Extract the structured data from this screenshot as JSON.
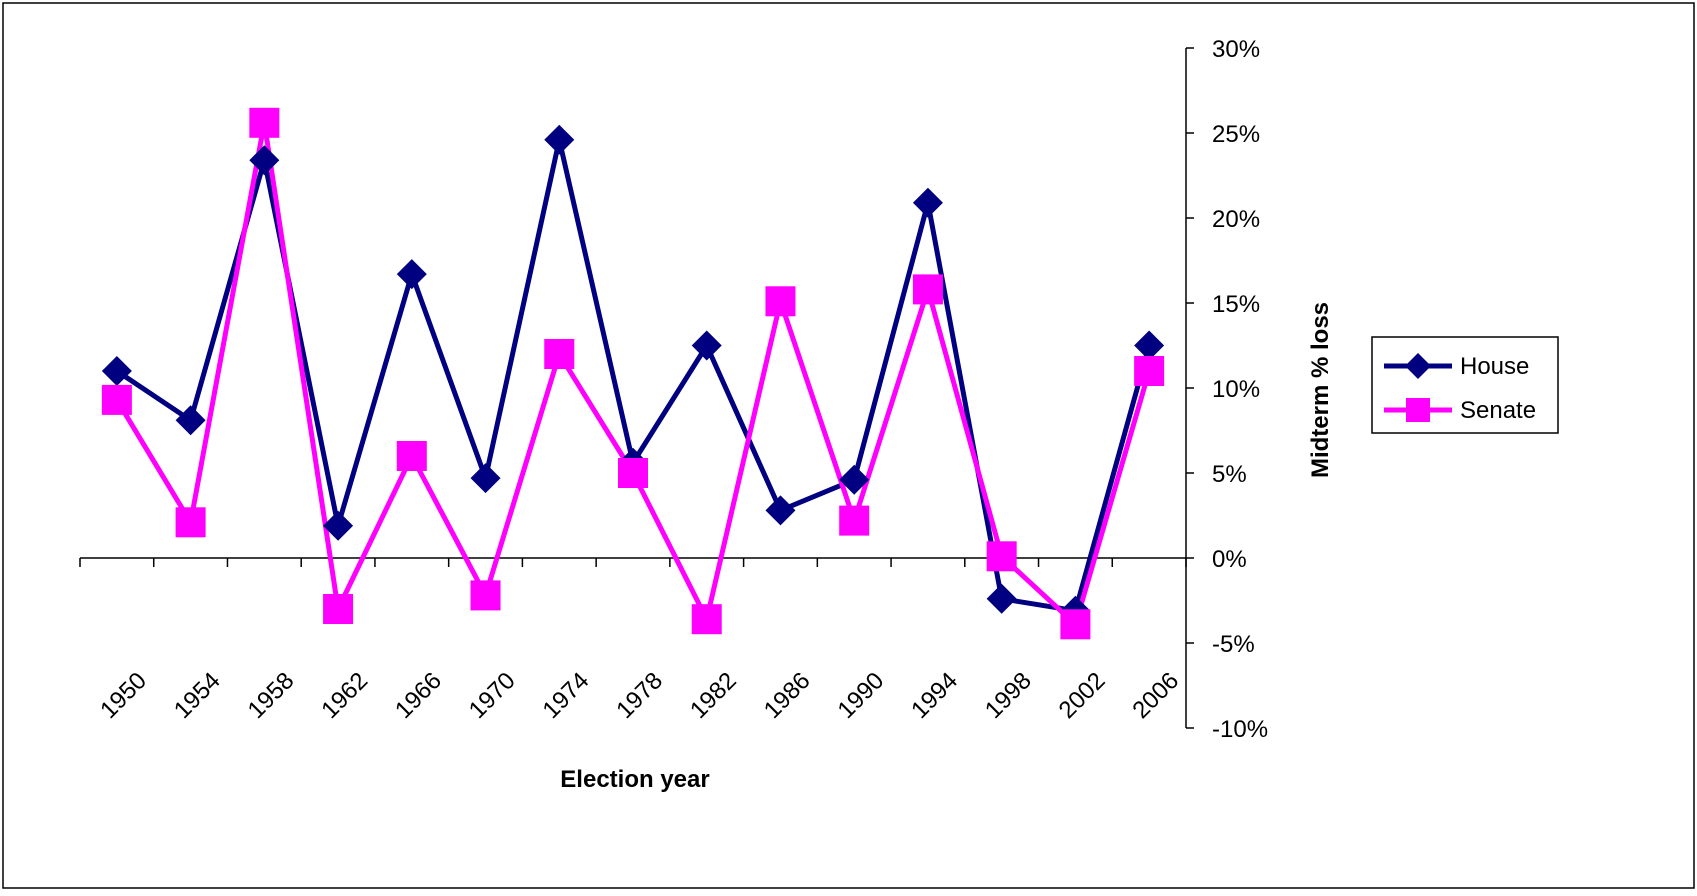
{
  "chart_data": {
    "type": "line",
    "title": "",
    "xlabel": "Election year",
    "ylabel": "Midterm % loss",
    "x_tick_labels": [
      "1950",
      "1954",
      "1958",
      "1962",
      "1966",
      "1970",
      "1974",
      "1978",
      "1982",
      "1986",
      "1990",
      "1994",
      "1998",
      "2002",
      "2006"
    ],
    "x": [
      1950,
      1954,
      1958,
      1962,
      1966,
      1970,
      1974,
      1978,
      1982,
      1986,
      1990,
      1994,
      1998,
      2002,
      2006
    ],
    "y_ticks": [
      "30%",
      "25%",
      "20%",
      "15%",
      "10%",
      "5%",
      "0%",
      "-5%",
      "-10%"
    ],
    "ylim": [
      -10,
      30
    ],
    "y_axis_position": "right",
    "legend_position": "right",
    "grid": false,
    "series": [
      {
        "name": "House",
        "color": "#000080",
        "marker": "diamond",
        "values": [
          11.0,
          8.1,
          23.4,
          1.9,
          16.7,
          4.7,
          24.6,
          5.6,
          12.5,
          2.8,
          4.6,
          20.9,
          -2.4,
          -3.1,
          12.5
        ]
      },
      {
        "name": "Senate",
        "color": "#ff00ff",
        "marker": "square",
        "values": [
          9.3,
          2.1,
          25.6,
          -3.0,
          6.0,
          -2.2,
          12.0,
          5.0,
          -3.6,
          15.1,
          2.2,
          15.8,
          0.1,
          -3.9,
          11.0
        ]
      }
    ]
  }
}
